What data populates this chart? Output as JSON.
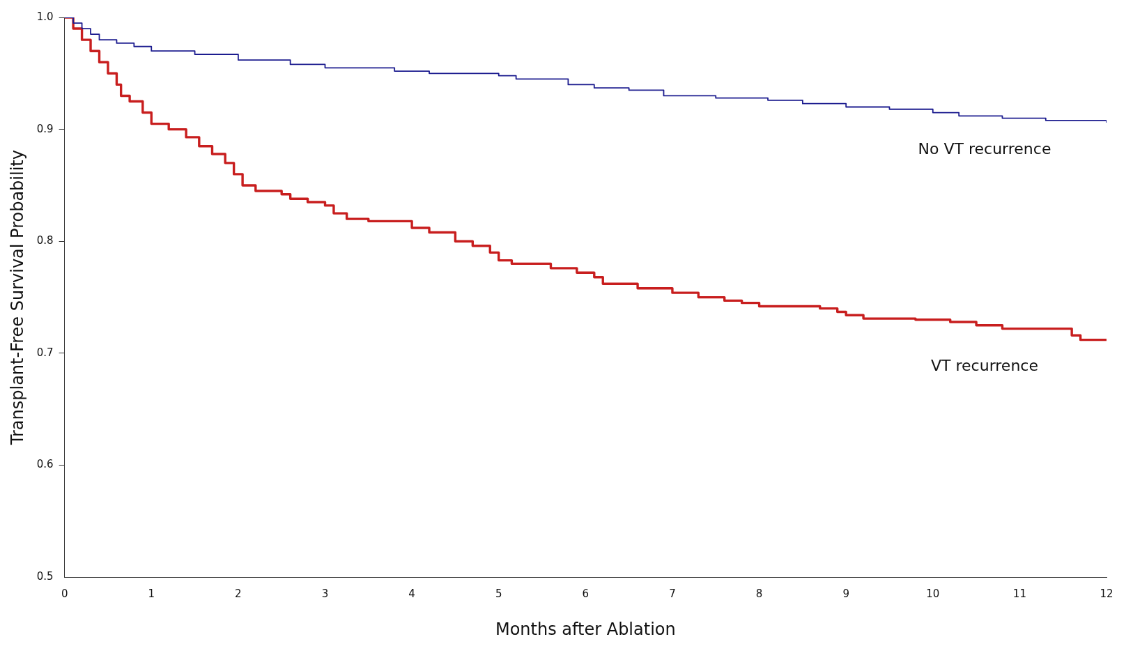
{
  "chart_data": {
    "type": "step",
    "xlabel": "Months after Ablation",
    "ylabel": "Transplant-Free Survival Probability",
    "xlim": [
      0,
      12
    ],
    "xticks": [
      0,
      1,
      2,
      3,
      4,
      5,
      6,
      7,
      8,
      9,
      10,
      11,
      12
    ],
    "ylim": [
      0.5,
      1.0
    ],
    "yticks": [
      0.5,
      0.6,
      0.7,
      0.8,
      0.9,
      {
        "value": 1.0,
        "label": "1.0"
      }
    ],
    "grid": false,
    "legend": false,
    "marker": "none",
    "line_style": "solid",
    "series": [
      {
        "name": "No VT recurrence",
        "color": "#1c1c8f",
        "x": [
          0,
          0.1,
          0.2,
          0.3,
          0.4,
          0.6,
          0.8,
          1.0,
          1.5,
          2.0,
          2.6,
          3.0,
          3.8,
          4.2,
          5.0,
          5.2,
          5.8,
          6.1,
          6.5,
          6.9,
          7.5,
          8.1,
          8.5,
          9.0,
          9.5,
          10.0,
          10.3,
          10.8,
          11.3,
          12.0
        ],
        "values": [
          1.0,
          0.995,
          0.99,
          0.985,
          0.98,
          0.977,
          0.974,
          0.97,
          0.967,
          0.962,
          0.958,
          0.955,
          0.952,
          0.95,
          0.948,
          0.945,
          0.94,
          0.937,
          0.935,
          0.93,
          0.928,
          0.926,
          0.923,
          0.92,
          0.918,
          0.915,
          0.912,
          0.91,
          0.908,
          0.906
        ]
      },
      {
        "name": "VT recurrence",
        "color": "#c81e1e",
        "x": [
          0,
          0.1,
          0.2,
          0.3,
          0.4,
          0.5,
          0.6,
          0.65,
          0.75,
          0.9,
          1.0,
          1.2,
          1.4,
          1.55,
          1.7,
          1.85,
          1.95,
          2.05,
          2.2,
          2.5,
          2.6,
          2.8,
          3.0,
          3.1,
          3.25,
          3.5,
          4.0,
          4.2,
          4.5,
          4.7,
          4.9,
          5.0,
          5.15,
          5.6,
          5.9,
          6.1,
          6.2,
          6.6,
          7.0,
          7.3,
          7.6,
          7.8,
          8.0,
          8.7,
          8.9,
          9.0,
          9.2,
          9.8,
          10.2,
          10.5,
          10.8,
          11.5,
          11.6,
          11.7,
          12.0
        ],
        "values": [
          1.0,
          0.99,
          0.98,
          0.97,
          0.96,
          0.95,
          0.94,
          0.93,
          0.925,
          0.915,
          0.905,
          0.9,
          0.893,
          0.885,
          0.878,
          0.87,
          0.86,
          0.85,
          0.845,
          0.842,
          0.838,
          0.835,
          0.832,
          0.825,
          0.82,
          0.818,
          0.812,
          0.808,
          0.8,
          0.796,
          0.79,
          0.783,
          0.78,
          0.776,
          0.772,
          0.768,
          0.762,
          0.758,
          0.754,
          0.75,
          0.747,
          0.745,
          0.742,
          0.74,
          0.737,
          0.734,
          0.731,
          0.73,
          0.728,
          0.725,
          0.722,
          0.722,
          0.716,
          0.712,
          0.712
        ]
      }
    ]
  }
}
